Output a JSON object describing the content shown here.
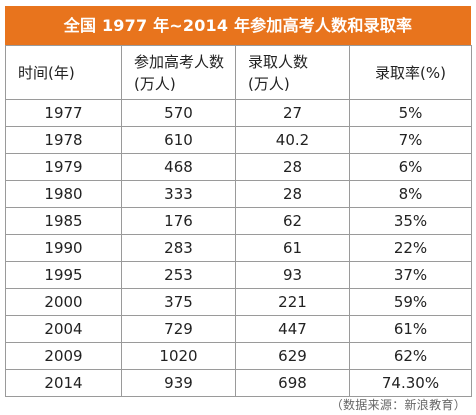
{
  "chart_data": {
    "type": "table",
    "title": "全国 1977 年~2014 年参加高考人数和录取率",
    "headers": [
      [
        "时间(年)"
      ],
      [
        "参加高考人数",
        "(万人)"
      ],
      [
        "录取人数",
        "(万人)"
      ],
      [
        "录取率(%)"
      ]
    ],
    "rows": [
      [
        "1977",
        "570",
        "27",
        "5%"
      ],
      [
        "1978",
        "610",
        "40.2",
        "7%"
      ],
      [
        "1979",
        "468",
        "28",
        "6%"
      ],
      [
        "1980",
        "333",
        "28",
        "8%"
      ],
      [
        "1985",
        "176",
        "62",
        "35%"
      ],
      [
        "1990",
        "283",
        "61",
        "22%"
      ],
      [
        "1995",
        "253",
        "93",
        "37%"
      ],
      [
        "2000",
        "375",
        "221",
        "59%"
      ],
      [
        "2004",
        "729",
        "447",
        "61%"
      ],
      [
        "2009",
        "1020",
        "629",
        "62%"
      ],
      [
        "2014",
        "939",
        "698",
        "74.30%"
      ]
    ],
    "source": "（数据来源：新浪教育）"
  },
  "colors": {
    "title_bar": "#e8741d",
    "title_text": "#ffffff",
    "grid": "#9a9a9a"
  }
}
